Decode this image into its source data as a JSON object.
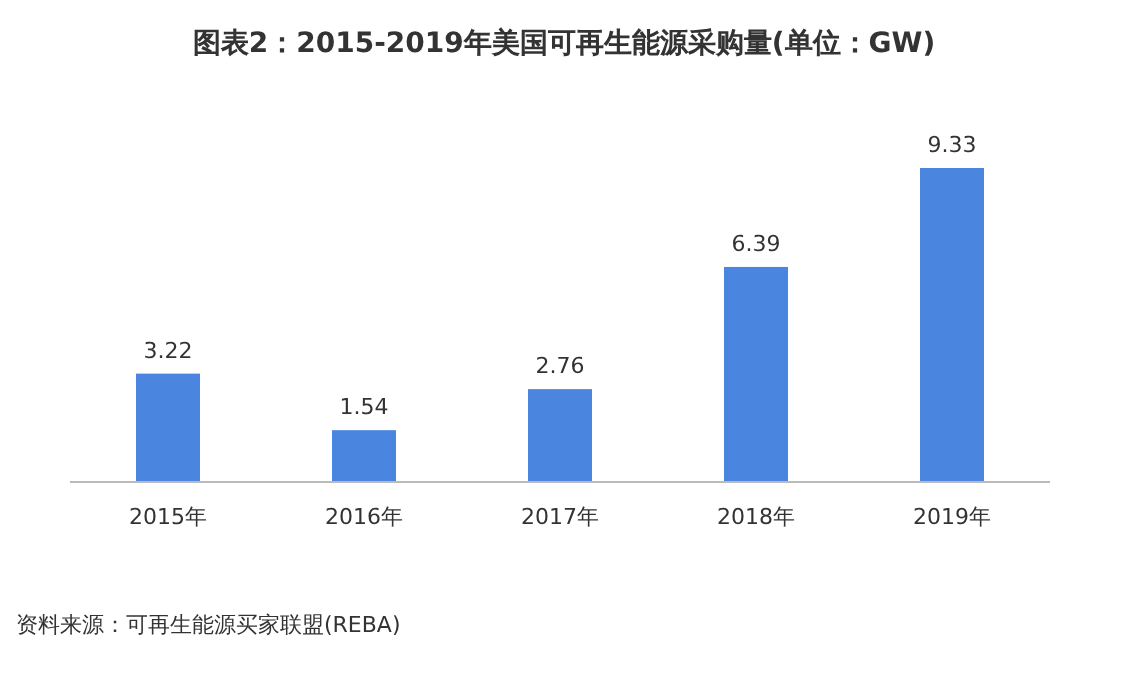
{
  "chart_data": {
    "type": "bar",
    "title": "图表2：2015-2019年美国可再生能源采购量(单位：GW)",
    "categories": [
      "2015年",
      "2016年",
      "2017年",
      "2018年",
      "2019年"
    ],
    "values": [
      3.22,
      1.54,
      2.76,
      6.39,
      9.33
    ],
    "color": "#4a86e0",
    "data_labels": true,
    "annotations": [
      "资料来源：可再生能源买家联盟(REBA)"
    ]
  }
}
